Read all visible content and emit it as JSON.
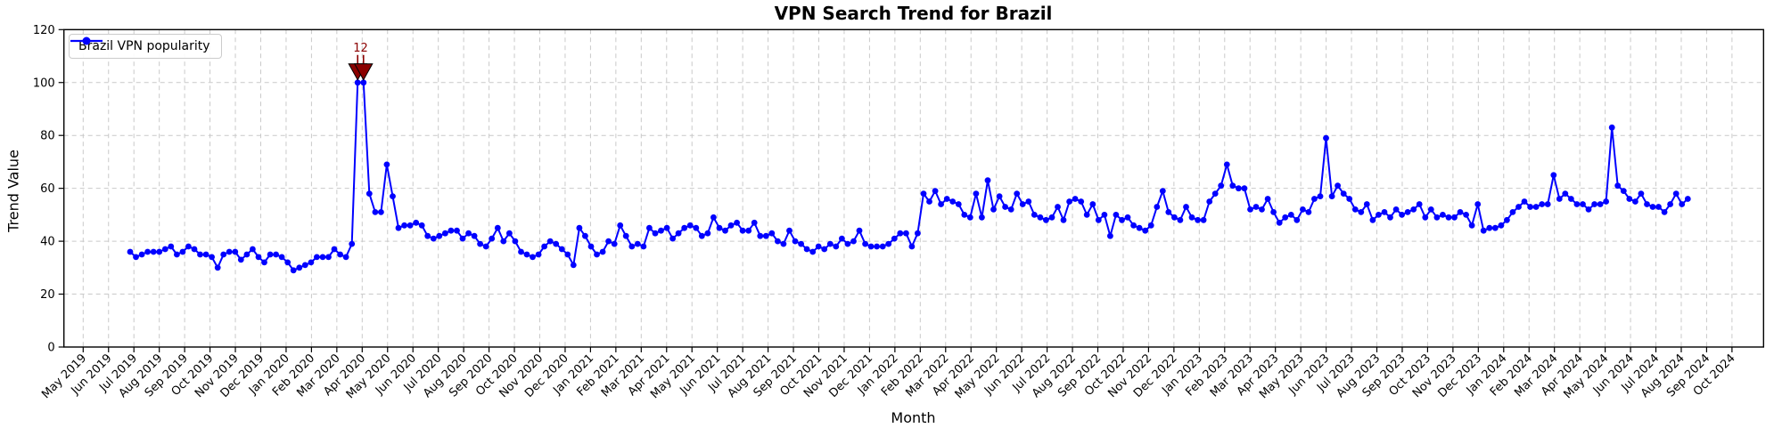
{
  "figure": {
    "title": "VPN Search Trend for Brazil",
    "xlabel": "Month",
    "ylabel": "Trend Value"
  },
  "legend": {
    "label": "Brazil VPN popularity",
    "position": "upper left",
    "line_color": "#0000ff",
    "marker": "circle"
  },
  "chart_data": {
    "type": "line",
    "title": "VPN Search Trend for Brazil",
    "xlabel": "Month",
    "ylabel": "Trend Value",
    "ylim": [
      0,
      120
    ],
    "y_ticks": [
      0,
      20,
      40,
      60,
      80,
      100,
      120
    ],
    "grid": "dashed both axes",
    "legend_position": "upper left",
    "x_tick_labels": [
      "May 2019",
      "Jun 2019",
      "Jul 2019",
      "Aug 2019",
      "Sep 2019",
      "Oct 2019",
      "Nov 2019",
      "Dec 2019",
      "Jan 2020",
      "Feb 2020",
      "Mar 2020",
      "Apr 2020",
      "May 2020",
      "Jun 2020",
      "Jul 2020",
      "Aug 2020",
      "Sep 2020",
      "Oct 2020",
      "Nov 2020",
      "Dec 2020",
      "Jan 2021",
      "Feb 2021",
      "Mar 2021",
      "Apr 2021",
      "May 2021",
      "Jun 2021",
      "Jul 2021",
      "Aug 2021",
      "Sep 2021",
      "Oct 2021",
      "Nov 2021",
      "Dec 2021",
      "Jan 2022",
      "Feb 2022",
      "Mar 2022",
      "Apr 2022",
      "May 2022",
      "Jun 2022",
      "Jul 2022",
      "Aug 2022",
      "Sep 2022",
      "Oct 2022",
      "Nov 2022",
      "Dec 2022",
      "Jan 2023",
      "Feb 2023",
      "Mar 2023",
      "Apr 2023",
      "May 2023",
      "Jun 2023",
      "Jul 2023",
      "Aug 2023",
      "Sep 2023",
      "Oct 2023",
      "Nov 2023",
      "Dec 2023",
      "Jan 2024",
      "Feb 2024",
      "Mar 2024",
      "Apr 2024",
      "May 2024",
      "Jun 2024",
      "Jul 2024",
      "Aug 2024",
      "Sep 2024",
      "Oct 2024"
    ],
    "series": [
      {
        "name": "Brazil VPN popularity",
        "color": "#0000ff",
        "marker": "circle",
        "sampling": "weekly, starting early Jul 2019",
        "values": [
          36,
          34,
          35,
          36,
          36,
          36,
          37,
          38,
          35,
          36,
          38,
          37,
          35,
          35,
          34,
          30,
          35,
          36,
          36,
          33,
          35,
          37,
          34,
          32,
          35,
          35,
          34,
          32,
          29,
          30,
          31,
          32,
          34,
          34,
          34,
          37,
          35,
          34,
          39,
          100,
          100,
          58,
          51,
          51,
          69,
          57,
          45,
          46,
          46,
          47,
          46,
          42,
          41,
          42,
          43,
          44,
          44,
          41,
          43,
          42,
          39,
          38,
          41,
          45,
          40,
          43,
          40,
          36,
          35,
          34,
          35,
          38,
          40,
          39,
          37,
          35,
          31,
          45,
          42,
          38,
          35,
          36,
          40,
          39,
          46,
          42,
          38,
          39,
          38,
          45,
          43,
          44,
          45,
          41,
          43,
          45,
          46,
          45,
          42,
          43,
          49,
          45,
          44,
          46,
          47,
          44,
          44,
          47,
          42,
          42,
          43,
          40,
          39,
          44,
          40,
          39,
          37,
          36,
          38,
          37,
          39,
          38,
          41,
          39,
          40,
          44,
          39,
          38,
          38,
          38,
          39,
          41,
          43,
          43,
          38,
          43,
          58,
          55,
          59,
          54,
          56,
          55,
          54,
          50,
          49,
          58,
          49,
          63,
          52,
          57,
          53,
          52,
          58,
          54,
          55,
          50,
          49,
          48,
          49,
          53,
          48,
          55,
          56,
          55,
          50,
          54,
          48,
          50,
          42,
          50,
          48,
          49,
          46,
          45,
          44,
          46,
          53,
          59,
          51,
          49,
          48,
          53,
          49,
          48,
          48,
          55,
          58,
          61,
          69,
          61,
          60,
          60,
          52,
          53,
          52,
          56,
          51,
          47,
          49,
          50,
          48,
          52,
          51,
          56,
          57,
          79,
          57,
          61,
          58,
          56,
          52,
          51,
          54,
          48,
          50,
          51,
          49,
          52,
          50,
          51,
          52,
          54,
          49,
          52,
          49,
          50,
          49,
          49,
          51,
          50,
          46,
          54,
          44,
          45,
          45,
          46,
          48,
          51,
          53,
          55,
          53,
          53,
          54,
          54,
          65,
          56,
          58,
          56,
          54,
          54,
          52,
          54,
          54,
          55,
          83,
          61,
          59,
          56,
          55,
          58,
          54,
          53,
          53,
          51,
          54,
          58,
          54,
          56
        ]
      }
    ],
    "annotation": {
      "text": "12",
      "color": "#8b0000",
      "marker": "triangle-down",
      "point_indices": [
        39,
        40
      ],
      "value": 100
    }
  }
}
